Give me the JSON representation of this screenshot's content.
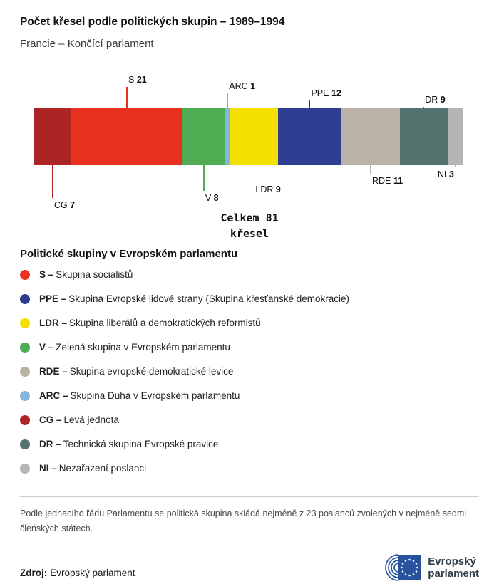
{
  "header": {
    "title": "Počet křesel podle politických skupin – 1989–1994",
    "subtitle": "Francie – Končící parlament"
  },
  "chart_data": {
    "type": "bar",
    "title": "Počet křesel podle politických skupin – 1989–1994",
    "subtitle": "Francie – Končící parlament",
    "total": 81,
    "total_line1": "Celkem 81",
    "total_line2": "křesel",
    "segments": [
      {
        "code": "CG",
        "value": 7,
        "color": "#ad2424",
        "label_pos": "below",
        "leader_len": 46,
        "align": "left"
      },
      {
        "code": "S",
        "value": 21,
        "color": "#e8311e",
        "label_pos": "above",
        "leader_len": 30,
        "align": "left"
      },
      {
        "code": "V",
        "value": 8,
        "color": "#4fac53",
        "label_pos": "below",
        "leader_len": 36,
        "align": "left"
      },
      {
        "code": "ARC",
        "value": 1,
        "color": "#85b6d9",
        "label_pos": "above",
        "leader_len": 21,
        "align": "left"
      },
      {
        "code": "LDR",
        "value": 9,
        "color": "#f3e000",
        "label_pos": "below",
        "leader_len": 24,
        "align": "left"
      },
      {
        "code": "PPE",
        "value": 12,
        "color": "#2e3d8f",
        "label_pos": "above",
        "leader_len": 11,
        "align": "left"
      },
      {
        "code": "RDE",
        "value": 11,
        "color": "#bab2a6",
        "label_pos": "below",
        "leader_len": 12,
        "align": "left"
      },
      {
        "code": "DR",
        "value": 9,
        "color": "#54726d",
        "label_pos": "above",
        "leader_len": 2,
        "align": "left"
      },
      {
        "code": "NI",
        "value": 3,
        "color": "#b5b5b5",
        "label_pos": "below",
        "leader_len": 3,
        "align": "right"
      }
    ]
  },
  "legend": {
    "heading": "Politické skupiny v Evropském parlamentu",
    "items": [
      {
        "code": "S –",
        "label": "Skupina socialistů",
        "color": "#e8311e"
      },
      {
        "code": "PPE –",
        "label": "Skupina Evropské lidové strany (Skupina křesťanské demokracie)",
        "color": "#2e3d8f"
      },
      {
        "code": "LDR –",
        "label": "Skupina liberálů a demokratických reformistů",
        "color": "#f3e000"
      },
      {
        "code": "V –",
        "label": "Zelená skupina v Evropském parlamentu",
        "color": "#4fac53"
      },
      {
        "code": "RDE –",
        "label": "Skupina evropské demokratické levice",
        "color": "#bab2a6"
      },
      {
        "code": "ARC –",
        "label": "Skupina Duha v Evropském parlamentu",
        "color": "#85b6d9"
      },
      {
        "code": "CG –",
        "label": "Levá jednota",
        "color": "#ad2424"
      },
      {
        "code": "DR –",
        "label": "Technická skupina Evropské pravice",
        "color": "#54726d"
      },
      {
        "code": "NI –",
        "label": "Nezařazení poslanci",
        "color": "#b5b5b5"
      }
    ]
  },
  "footer": {
    "note": "Podle jednacího řádu Parlamentu se politická skupina skládá nejméně z 23 poslanců zvolených v nejméně sedmi členských státech.",
    "source_label": "Zdroj:",
    "source_value": "Evropský parlament",
    "logo_line1": "Evropský",
    "logo_line2": "parlament"
  }
}
